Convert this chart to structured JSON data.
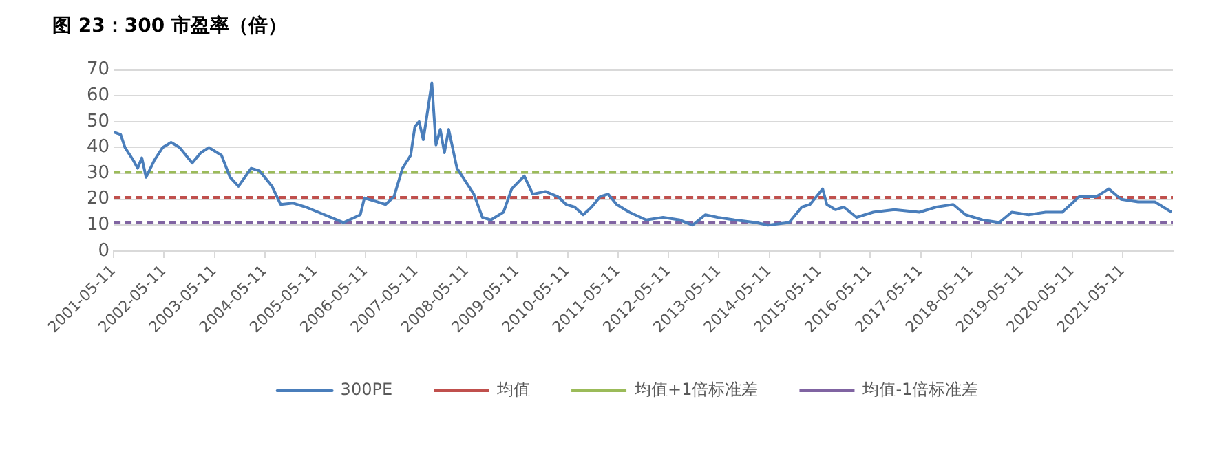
{
  "chart_data": {
    "type": "line",
    "title": "图 23：300 市盈率（倍）",
    "x": [
      "2001-05-11",
      "2001-07",
      "2001-08",
      "2001-10",
      "2001-11",
      "2001-12",
      "2002-01",
      "2002-03",
      "2002-05",
      "2002-07",
      "2002-09",
      "2002-12",
      "2003-02",
      "2003-04",
      "2003-07",
      "2003-09",
      "2003-11",
      "2004-02",
      "2004-04",
      "2004-07",
      "2004-09",
      "2004-12",
      "2005-03",
      "2005-06",
      "2005-09",
      "2005-12",
      "2006-04",
      "2006-05",
      "2006-08",
      "2006-10",
      "2006-12",
      "2007-02",
      "2007-04",
      "2007-05",
      "2007-06",
      "2007-07",
      "2007-09",
      "2007-10",
      "2007-11",
      "2007-12",
      "2008-01",
      "2008-03",
      "2008-05",
      "2008-07",
      "2008-09",
      "2008-11",
      "2009-02",
      "2009-04",
      "2009-07",
      "2009-09",
      "2009-12",
      "2010-03",
      "2010-05",
      "2010-07",
      "2010-09",
      "2010-11",
      "2011-01",
      "2011-03",
      "2011-05",
      "2011-08",
      "2011-12",
      "2012-04",
      "2012-08",
      "2012-11",
      "2013-02",
      "2013-05",
      "2013-09",
      "2014-02",
      "2014-05",
      "2014-10",
      "2015-01",
      "2015-03",
      "2015-05",
      "2015-06",
      "2015-07",
      "2015-09",
      "2015-11",
      "2016-02",
      "2016-06",
      "2016-11",
      "2017-05",
      "2017-09",
      "2018-01",
      "2018-04",
      "2018-08",
      "2018-12",
      "2019-03",
      "2019-07",
      "2019-11",
      "2020-03",
      "2020-07",
      "2020-11",
      "2021-02",
      "2021-05",
      "2021-09",
      "2022-01",
      "2022-05"
    ],
    "series": [
      {
        "name": "300PE",
        "color": "#4a7ebb",
        "values": [
          46,
          45,
          40,
          35,
          32,
          36,
          28.5,
          35,
          40,
          42,
          40,
          34,
          38,
          40,
          37,
          28.5,
          25,
          32,
          31,
          25,
          18,
          18.5,
          17,
          15,
          13,
          11,
          14,
          20.5,
          19,
          18,
          21,
          32,
          37,
          48,
          50,
          43,
          65,
          41,
          47,
          38,
          47,
          32,
          27,
          22,
          13,
          12,
          15,
          24,
          29,
          22,
          23,
          21,
          18,
          17,
          14,
          17,
          21,
          22,
          18,
          15,
          12,
          13,
          12,
          10,
          14,
          13,
          12,
          11,
          10,
          11,
          17,
          18,
          22,
          24,
          18,
          16,
          17,
          13,
          15,
          16,
          15,
          17,
          18,
          14,
          12,
          11,
          15,
          14,
          15,
          15,
          21,
          21,
          24,
          20,
          19,
          19,
          15
        ]
      }
    ],
    "ref_lines": [
      {
        "axis": "y",
        "value": 20.7,
        "label": "均值",
        "color": "#c0504d",
        "line_style": "dashed"
      },
      {
        "axis": "y",
        "value": 30.4,
        "label": "均值+1倍标准差",
        "color": "#9bbb59",
        "line_style": "dashed"
      },
      {
        "axis": "y",
        "value": 10.9,
        "label": "均值-1倍标准差",
        "color": "#8064a2",
        "line_style": "dashed"
      }
    ],
    "xlim": [
      "2001-05-11",
      "2022-05-11"
    ],
    "xticks": [
      "2001-05-11",
      "2002-05-11",
      "2003-05-11",
      "2004-05-11",
      "2005-05-11",
      "2006-05-11",
      "2007-05-11",
      "2008-05-11",
      "2009-05-11",
      "2010-05-11",
      "2011-05-11",
      "2012-05-11",
      "2013-05-11",
      "2014-05-11",
      "2015-05-11",
      "2016-05-11",
      "2017-05-11",
      "2018-05-11",
      "2019-05-11",
      "2020-05-11",
      "2021-05-11"
    ],
    "ylim": [
      0,
      70
    ],
    "yticks": [
      0,
      10,
      20,
      30,
      40,
      50,
      60,
      70
    ],
    "grid": "y",
    "legend": "bottom",
    "marker": "none",
    "line_style": "solid"
  }
}
